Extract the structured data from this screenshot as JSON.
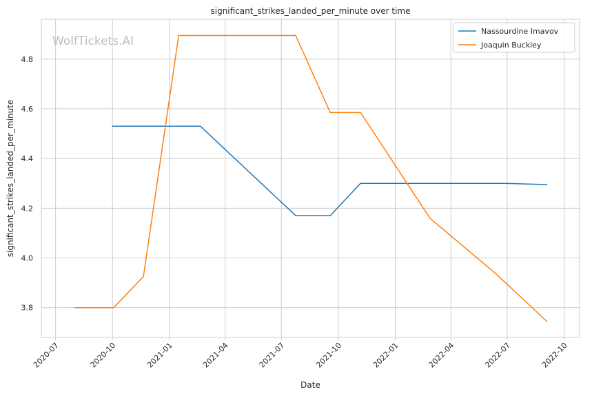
{
  "chart_data": {
    "type": "line",
    "title": "significant_strikes_landed_per_minute over time",
    "xlabel": "Date",
    "ylabel": "significant_strikes_landed_per_minute",
    "watermark": "WolfTickets.AI",
    "x_ticks": [
      "2020-07",
      "2020-10",
      "2021-01",
      "2021-04",
      "2021-07",
      "2021-10",
      "2022-01",
      "2022-04",
      "2022-07",
      "2022-10"
    ],
    "y_ticks": [
      "3.8",
      "4.0",
      "4.2",
      "4.4",
      "4.6",
      "4.8"
    ],
    "xlim": [
      "2020-06-08",
      "2022-10-26"
    ],
    "ylim": [
      3.68,
      4.96
    ],
    "grid": true,
    "legend_position": "top-right",
    "series": [
      {
        "name": "Nassourdine Imavov",
        "color": "#1f77b4",
        "points": [
          {
            "x": "2020-10-01",
            "y": 4.53
          },
          {
            "x": "2021-02-20",
            "y": 4.53
          },
          {
            "x": "2021-07-24",
            "y": 4.17
          },
          {
            "x": "2021-09-18",
            "y": 4.17
          },
          {
            "x": "2021-11-06",
            "y": 4.3
          },
          {
            "x": "2022-06-25",
            "y": 4.3
          },
          {
            "x": "2022-09-03",
            "y": 4.295
          }
        ]
      },
      {
        "name": "Joaquin Buckley",
        "color": "#ff7f0e",
        "points": [
          {
            "x": "2020-08-01",
            "y": 3.8
          },
          {
            "x": "2020-10-03",
            "y": 3.8
          },
          {
            "x": "2020-11-20",
            "y": 3.925
          },
          {
            "x": "2021-01-16",
            "y": 4.895
          },
          {
            "x": "2021-07-24",
            "y": 4.895
          },
          {
            "x": "2021-09-18",
            "y": 4.585
          },
          {
            "x": "2021-11-06",
            "y": 4.585
          },
          {
            "x": "2022-02-26",
            "y": 4.16
          },
          {
            "x": "2022-06-11",
            "y": 3.94
          },
          {
            "x": "2022-09-03",
            "y": 3.745
          }
        ]
      }
    ]
  }
}
